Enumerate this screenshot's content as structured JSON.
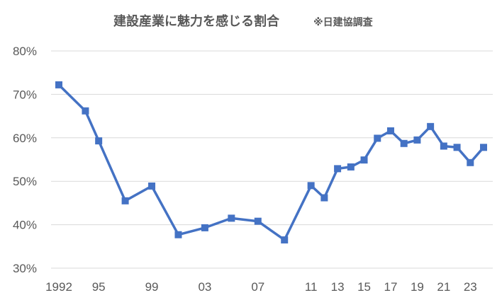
{
  "chart_data": {
    "type": "line",
    "title": "建設産業に魅力を感じる割合",
    "subtitle": "※日建協調査",
    "xlabel": "",
    "ylabel": "",
    "ylim": [
      0.3,
      0.8
    ],
    "y_ticks": [
      "30%",
      "40%",
      "50%",
      "60%",
      "70%",
      "80%"
    ],
    "y_tick_values": [
      0.3,
      0.4,
      0.5,
      0.6,
      0.7,
      0.8
    ],
    "x_ticks": [
      {
        "label": "1992",
        "year": 1992
      },
      {
        "label": "95",
        "year": 1995
      },
      {
        "label": "99",
        "year": 1999
      },
      {
        "label": "03",
        "year": 2003
      },
      {
        "label": "07",
        "year": 2007
      },
      {
        "label": "11",
        "year": 2011
      },
      {
        "label": "13",
        "year": 2013
      },
      {
        "label": "15",
        "year": 2015
      },
      {
        "label": "17",
        "year": 2017
      },
      {
        "label": "19",
        "year": 2019
      },
      {
        "label": "21",
        "year": 2021
      },
      {
        "label": "23",
        "year": 2023
      }
    ],
    "grid": true,
    "legend": "none",
    "series": [
      {
        "color": "#4472c4",
        "marker": "square",
        "x": [
          1992,
          1994,
          1995,
          1997,
          1999,
          2001,
          2003,
          2005,
          2007,
          2009,
          2011,
          2012,
          2013,
          2014,
          2015,
          2016,
          2017,
          2018,
          2019,
          2020,
          2021,
          2022,
          2023,
          2024
        ],
        "values": [
          0.722,
          0.662,
          0.593,
          0.455,
          0.489,
          0.377,
          0.393,
          0.415,
          0.408,
          0.365,
          0.49,
          0.462,
          0.529,
          0.533,
          0.549,
          0.599,
          0.616,
          0.587,
          0.595,
          0.626,
          0.581,
          0.578,
          0.543,
          0.578
        ]
      }
    ]
  }
}
